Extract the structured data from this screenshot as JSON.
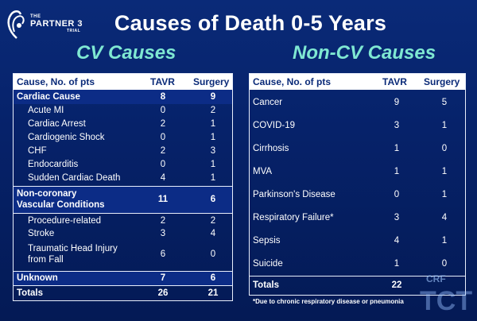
{
  "logo": {
    "line1": "THE",
    "line2": "PARTNER 3",
    "line3": "TRIAL"
  },
  "title": "Causes of Death 0-5 Years",
  "subtitles": {
    "cv": "CV Causes",
    "noncv": "Non-CV Causes"
  },
  "cv_table": {
    "headers": [
      "Cause, No. of pts",
      "TAVR",
      "Surgery"
    ],
    "rows": [
      {
        "label": "Cardiac Cause",
        "tavr": "8",
        "surgery": "9"
      },
      {
        "label": "Acute MI",
        "tavr": "0",
        "surgery": "2"
      },
      {
        "label": "Cardiac Arrest",
        "tavr": "2",
        "surgery": "1"
      },
      {
        "label": "Cardiogenic Shock",
        "tavr": "0",
        "surgery": "1"
      },
      {
        "label": "CHF",
        "tavr": "2",
        "surgery": "3"
      },
      {
        "label": "Endocarditis",
        "tavr": "0",
        "surgery": "1"
      },
      {
        "label": "Sudden Cardiac Death",
        "tavr": "4",
        "surgery": "1"
      },
      {
        "label_line1": "Non-coronary",
        "label_line2": "Vascular Conditions",
        "tavr": "11",
        "surgery": "6"
      },
      {
        "label": "Procedure-related",
        "tavr": "2",
        "surgery": "2"
      },
      {
        "label": "Stroke",
        "tavr": "3",
        "surgery": "4"
      },
      {
        "label_line1": "Traumatic Head Injury",
        "label_line2": "from Fall",
        "tavr": "6",
        "surgery": "0"
      },
      {
        "label": "Unknown",
        "tavr": "7",
        "surgery": "6"
      },
      {
        "label": "Totals",
        "tavr": "26",
        "surgery": "21"
      }
    ]
  },
  "noncv_table": {
    "headers": [
      "Cause, No. of pts",
      "TAVR",
      "Surgery"
    ],
    "rows": [
      {
        "label": "Cancer",
        "tavr": "9",
        "surgery": "5"
      },
      {
        "label": "COVID-19",
        "tavr": "3",
        "surgery": "1"
      },
      {
        "label": "Cirrhosis",
        "tavr": "1",
        "surgery": "0"
      },
      {
        "label": "MVA",
        "tavr": "1",
        "surgery": "1"
      },
      {
        "label": "Parkinson's Disease",
        "tavr": "0",
        "surgery": "1"
      },
      {
        "label": "Respiratory Failure*",
        "tavr": "3",
        "surgery": "4"
      },
      {
        "label": "Sepsis",
        "tavr": "4",
        "surgery": "1"
      },
      {
        "label": "Suicide",
        "tavr": "1",
        "surgery": "0"
      },
      {
        "label": "Totals",
        "tavr": "22",
        "surgery": ""
      }
    ]
  },
  "footnote": "*Due to chronic respiratory disease or pneumonia",
  "watermark": {
    "small": "CRF",
    "big": "TCT"
  },
  "colors": {
    "background": "#06226a",
    "subtitle": "#7fe8d2",
    "header_text": "#0a2a78"
  }
}
